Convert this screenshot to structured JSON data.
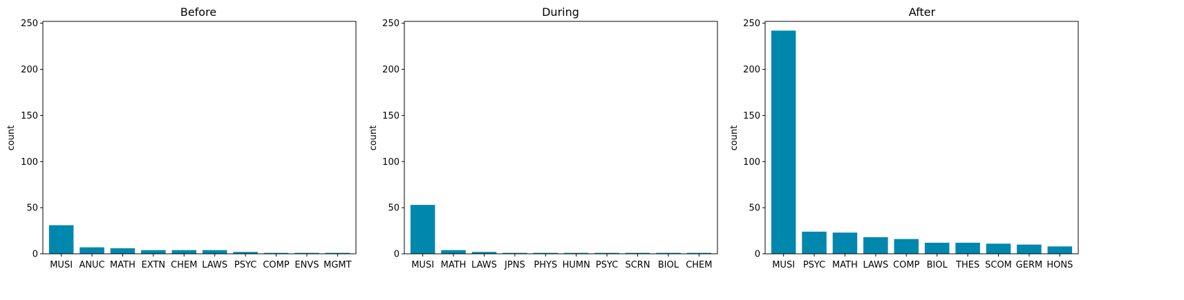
{
  "bar_color": "#0087ad",
  "chart_data": [
    {
      "type": "bar",
      "title": "Before",
      "xlabel": "",
      "ylabel": "count",
      "ylim": [
        0,
        252
      ],
      "yticks": [
        0,
        50,
        100,
        150,
        200,
        250
      ],
      "categories": [
        "MUSI",
        "ANUC",
        "MATH",
        "EXTN",
        "CHEM",
        "LAWS",
        "PSYC",
        "COMP",
        "ENVS",
        "MGMT"
      ],
      "values": [
        31,
        7,
        6,
        4,
        4,
        4,
        2,
        1,
        1,
        1
      ]
    },
    {
      "type": "bar",
      "title": "During",
      "xlabel": "",
      "ylabel": "count",
      "ylim": [
        0,
        252
      ],
      "yticks": [
        0,
        50,
        100,
        150,
        200,
        250
      ],
      "categories": [
        "MUSI",
        "MATH",
        "LAWS",
        "JPNS",
        "PHYS",
        "HUMN",
        "PSYC",
        "SCRN",
        "BIOL",
        "CHEM"
      ],
      "values": [
        53,
        4,
        2,
        1,
        1,
        1,
        1,
        1,
        1,
        1
      ]
    },
    {
      "type": "bar",
      "title": "After",
      "xlabel": "",
      "ylabel": "count",
      "ylim": [
        0,
        252
      ],
      "yticks": [
        0,
        50,
        100,
        150,
        200,
        250
      ],
      "categories": [
        "MUSI",
        "PSYC",
        "MATH",
        "LAWS",
        "COMP",
        "BIOL",
        "THES",
        "SCOM",
        "GERM",
        "HONS"
      ],
      "values": [
        242,
        24,
        23,
        18,
        16,
        12,
        12,
        11,
        10,
        8
      ]
    }
  ]
}
